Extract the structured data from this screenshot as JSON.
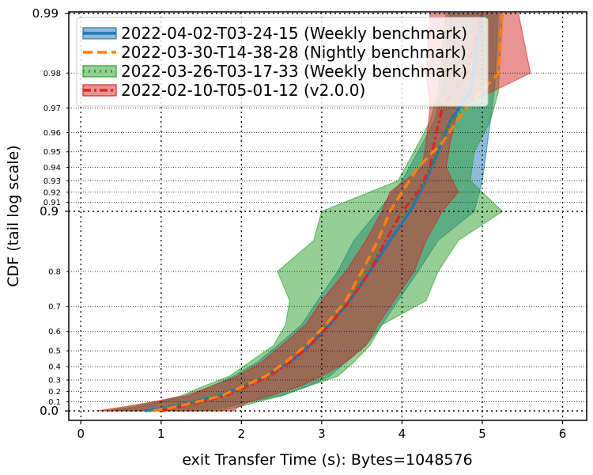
{
  "chart_data": {
    "type": "line",
    "title": "",
    "xlabel": "exit Transfer Time (s): Bytes=1048576",
    "ylabel": "CDF (tail log scale)",
    "xlim": [
      -0.15,
      6.3
    ],
    "x_ticks": [
      "0",
      "1",
      "2",
      "3",
      "4",
      "5",
      "6"
    ],
    "y_scale": "tail-log",
    "y_ticks_major": [
      "0.0",
      "0.9",
      "0.99"
    ],
    "y_ticks_minor": [
      "0.1",
      "0.2",
      "0.3",
      "0.4",
      "0.5",
      "0.6",
      "0.7",
      "0.8",
      "0.91",
      "0.92",
      "0.93",
      "0.94",
      "0.95",
      "0.96",
      "0.97",
      "0.98"
    ],
    "grid": true,
    "legend_position": "top-left",
    "series": [
      {
        "name": "2022-04-02-T03-24-15 (Weekly benchmark)",
        "color": "#1f77b4",
        "line_style": "solid",
        "x": [
          0.8,
          1.1,
          1.4,
          1.7,
          2.0,
          2.3,
          2.6,
          2.85,
          3.1,
          3.35,
          3.6,
          3.85,
          4.1,
          4.3,
          4.45,
          4.6,
          4.85,
          5.0
        ],
        "y": [
          0.0,
          0.04,
          0.1,
          0.16,
          0.24,
          0.33,
          0.43,
          0.53,
          0.63,
          0.72,
          0.8,
          0.86,
          0.9,
          0.93,
          0.95,
          0.965,
          0.975,
          0.99
        ],
        "band_low": [
          0.35,
          0.7,
          1.0,
          1.35,
          1.6,
          1.9,
          2.2,
          2.45,
          2.75,
          2.95,
          3.2,
          3.4,
          3.7,
          4.0,
          4.2,
          4.4,
          4.5,
          4.6
        ],
        "band_high": [
          1.5,
          1.8,
          2.1,
          2.5,
          2.8,
          3.1,
          3.3,
          3.55,
          3.75,
          3.95,
          4.2,
          4.45,
          4.9,
          5.0,
          5.05,
          5.1,
          5.15,
          5.2
        ]
      },
      {
        "name": "2022-03-30-T14-38-28 (Nightly benchmark)",
        "color": "#ff7f0e",
        "line_style": "dashed",
        "x": [
          0.9,
          1.15,
          1.45,
          1.75,
          2.0,
          2.3,
          2.55,
          2.8,
          3.05,
          3.3,
          3.5,
          3.7,
          3.85,
          4.0,
          4.2,
          4.5,
          4.8,
          5.2,
          5.25
        ],
        "y": [
          0.0,
          0.04,
          0.1,
          0.16,
          0.24,
          0.33,
          0.43,
          0.53,
          0.63,
          0.72,
          0.8,
          0.86,
          0.9,
          0.92,
          0.94,
          0.955,
          0.97,
          0.98,
          0.99
        ]
      },
      {
        "name": "2022-03-26-T03-17-33 (Weekly benchmark)",
        "color": "#2ca02c",
        "line_style": "dotted",
        "x": [
          0.85,
          1.1,
          1.4,
          1.7,
          2.0,
          2.3,
          2.55,
          2.8,
          3.05,
          3.3,
          3.55,
          3.8,
          4.05,
          4.3,
          4.45,
          4.6,
          5.0,
          5.05
        ],
        "y": [
          0.0,
          0.04,
          0.1,
          0.16,
          0.24,
          0.33,
          0.43,
          0.53,
          0.63,
          0.72,
          0.8,
          0.86,
          0.9,
          0.93,
          0.95,
          0.965,
          0.975,
          0.99
        ],
        "band_low": [
          0.3,
          0.6,
          0.95,
          1.25,
          1.5,
          1.85,
          2.1,
          2.4,
          2.55,
          2.6,
          2.45,
          2.9,
          3.0,
          3.95,
          4.15,
          4.35,
          4.45,
          4.55
        ],
        "band_high": [
          1.7,
          1.95,
          2.2,
          2.5,
          2.8,
          3.2,
          3.4,
          3.6,
          3.75,
          4.3,
          4.45,
          4.7,
          5.25,
          4.85,
          4.9,
          5.1,
          5.2,
          5.25
        ]
      },
      {
        "name": "2022-02-10-T05-01-12 (v2.0.0)",
        "color": "#d62728",
        "line_style": "dashdot",
        "x": [
          1.0,
          1.2,
          1.5,
          1.8,
          2.05,
          2.35,
          2.6,
          2.85,
          3.1,
          3.35,
          3.6,
          3.8,
          4.0,
          4.2,
          4.35,
          4.4,
          4.5,
          4.8,
          5.0
        ],
        "y": [
          0.0,
          0.04,
          0.1,
          0.16,
          0.24,
          0.33,
          0.43,
          0.53,
          0.63,
          0.72,
          0.8,
          0.86,
          0.9,
          0.92,
          0.94,
          0.955,
          0.97,
          0.98,
          0.99
        ],
        "band_low": [
          0.2,
          0.5,
          0.9,
          1.3,
          1.6,
          1.95,
          2.25,
          2.5,
          2.8,
          3.0,
          3.3,
          3.55,
          3.75,
          3.85,
          4.25,
          4.3,
          4.35,
          4.3,
          4.35
        ],
        "band_high": [
          1.9,
          1.95,
          2.1,
          2.35,
          2.7,
          3.0,
          3.3,
          3.55,
          3.7,
          3.9,
          4.15,
          4.3,
          4.5,
          4.7,
          4.55,
          4.6,
          4.7,
          5.6,
          5.45
        ]
      }
    ]
  }
}
